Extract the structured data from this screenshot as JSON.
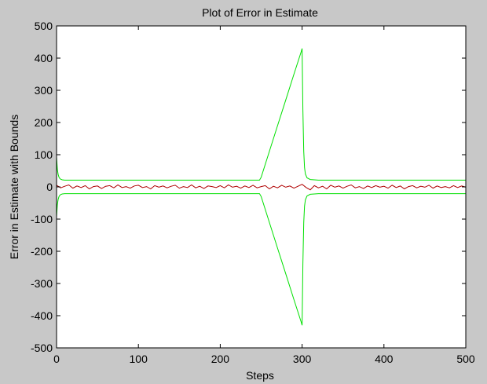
{
  "chart_data": {
    "type": "line",
    "title": "Plot of Error in Estimate",
    "xlabel": "Steps",
    "ylabel": "Error in Estimate with Bounds",
    "xlim": [
      0,
      500
    ],
    "ylim": [
      -500,
      500
    ],
    "xticks": [
      0,
      100,
      200,
      300,
      400,
      500
    ],
    "yticks": [
      -500,
      -400,
      -300,
      -200,
      -100,
      0,
      100,
      200,
      300,
      400,
      500
    ],
    "grid": false,
    "legend": "none",
    "colors": {
      "background": "#c8c8c8",
      "axes_face": "#ffffff",
      "error": "#b00000",
      "bounds": "#00e000"
    },
    "series": [
      {
        "color": "#00e000",
        "x": [
          0,
          1,
          2,
          3,
          4,
          5,
          7,
          10,
          20,
          50,
          100,
          150,
          200,
          248,
          250,
          260,
          270,
          280,
          290,
          299,
          300,
          301,
          302,
          303,
          304,
          306,
          310,
          320,
          350,
          400,
          450,
          500
        ],
        "y": [
          92,
          55,
          38,
          30,
          26,
          24,
          22,
          21,
          21,
          21,
          21,
          21,
          21,
          21,
          30,
          110,
          190,
          270,
          350,
          421,
          430,
          240,
          110,
          60,
          40,
          28,
          23,
          21,
          21,
          21,
          21,
          21
        ]
      },
      {
        "color": "#00e000",
        "x": [
          0,
          1,
          2,
          3,
          4,
          5,
          7,
          10,
          20,
          50,
          100,
          150,
          200,
          248,
          250,
          260,
          270,
          280,
          290,
          299,
          300,
          301,
          302,
          303,
          304,
          306,
          310,
          320,
          350,
          400,
          450,
          500
        ],
        "y": [
          -92,
          -55,
          -38,
          -30,
          -26,
          -24,
          -22,
          -21,
          -21,
          -21,
          -21,
          -21,
          -21,
          -21,
          -30,
          -110,
          -190,
          -270,
          -350,
          -421,
          -430,
          -240,
          -110,
          -60,
          -40,
          -28,
          -23,
          -21,
          -21,
          -21,
          -21,
          -21
        ]
      },
      {
        "color": "#b00000",
        "x": [
          0,
          5,
          10,
          15,
          20,
          25,
          30,
          35,
          40,
          45,
          50,
          55,
          60,
          65,
          70,
          75,
          80,
          85,
          90,
          95,
          100,
          105,
          110,
          115,
          120,
          125,
          130,
          135,
          140,
          145,
          150,
          155,
          160,
          165,
          170,
          175,
          180,
          185,
          190,
          195,
          200,
          205,
          210,
          215,
          220,
          225,
          230,
          235,
          240,
          245,
          250,
          255,
          260,
          265,
          270,
          275,
          280,
          285,
          290,
          295,
          300,
          305,
          310,
          315,
          320,
          325,
          330,
          335,
          340,
          345,
          350,
          355,
          360,
          365,
          370,
          375,
          380,
          385,
          390,
          395,
          400,
          405,
          410,
          415,
          420,
          425,
          430,
          435,
          440,
          445,
          450,
          455,
          460,
          465,
          470,
          475,
          480,
          485,
          490,
          495,
          500
        ],
        "y": [
          5,
          -3,
          2,
          6,
          -4,
          3,
          -2,
          4,
          -6,
          1,
          3,
          -5,
          2,
          4,
          -3,
          6,
          -2,
          1,
          -4,
          3,
          5,
          -2,
          1,
          -6,
          4,
          -1,
          3,
          -3,
          2,
          5,
          -4,
          1,
          -2,
          6,
          -3,
          2,
          -5,
          3,
          1,
          -2,
          4,
          -3,
          6,
          -1,
          2,
          -4,
          3,
          -2,
          5,
          -3,
          1,
          4,
          -6,
          2,
          -3,
          5,
          -1,
          3,
          -4,
          2,
          8,
          -2,
          -9,
          4,
          -3,
          2,
          -6,
          5,
          -1,
          3,
          -4,
          2,
          6,
          -3,
          1,
          -5,
          3,
          -2,
          4,
          -1,
          2,
          -4,
          5,
          -2,
          3,
          -6,
          1,
          4,
          -3,
          2,
          -1,
          5,
          -4,
          3,
          -2,
          1,
          -3,
          4,
          -2,
          3,
          -1
        ]
      }
    ]
  }
}
